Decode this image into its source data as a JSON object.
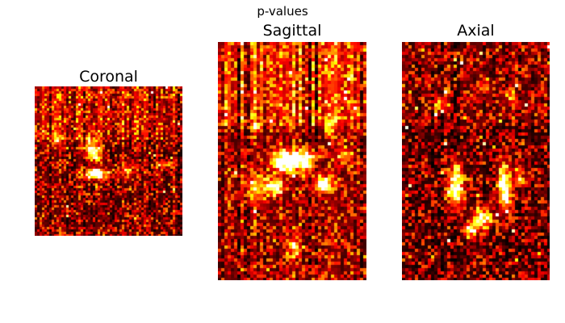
{
  "figure": {
    "suptitle": "p-values",
    "colormap": "hot",
    "colors": {
      "background": "#ffffff",
      "low": "#000000",
      "mid": "#ff2a00",
      "high": "#ffffff"
    }
  },
  "panels": [
    {
      "key": "coronal",
      "title": "Coronal"
    },
    {
      "key": "sagittal",
      "title": "Sagittal"
    },
    {
      "key": "axial",
      "title": "Axial"
    }
  ]
}
